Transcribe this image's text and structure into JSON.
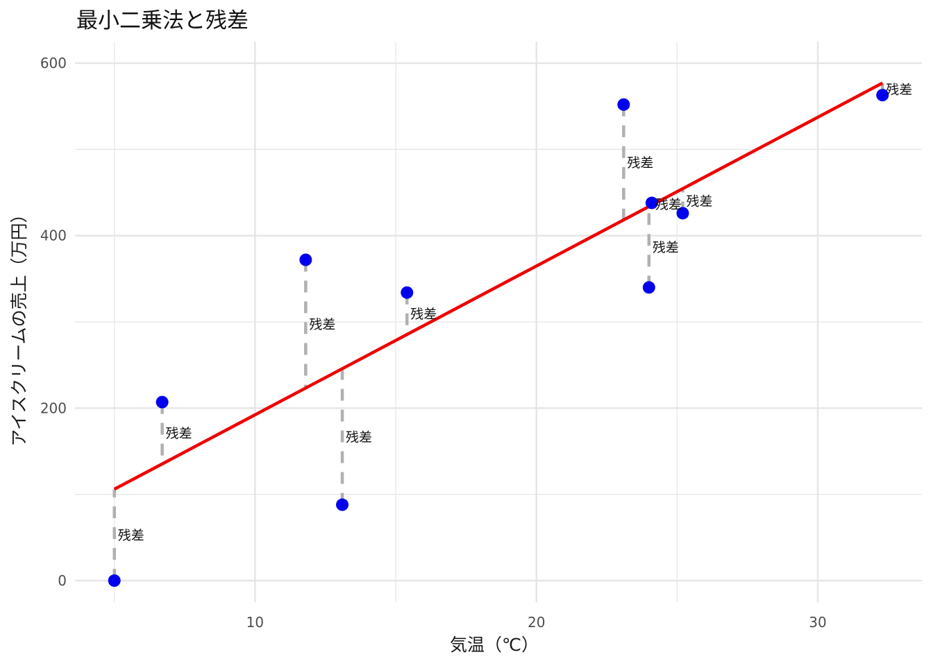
{
  "chart_data": {
    "type": "scatter",
    "title": "最小二乗法と残差",
    "xlabel": "気温（℃）",
    "ylabel": "アイスクリームの売上（万円）",
    "xlim": [
      3.6,
      33.7
    ],
    "ylim": [
      -25,
      625
    ],
    "x_ticks": [
      10,
      20,
      30
    ],
    "y_ticks": [
      0,
      200,
      400,
      600
    ],
    "x_minor_ticks": [
      5,
      15,
      25
    ],
    "y_minor_ticks": [
      100,
      300,
      500
    ],
    "grid": true,
    "points": [
      {
        "x": 5.0,
        "y": 0
      },
      {
        "x": 6.7,
        "y": 207
      },
      {
        "x": 11.8,
        "y": 372
      },
      {
        "x": 13.1,
        "y": 88
      },
      {
        "x": 15.4,
        "y": 334
      },
      {
        "x": 23.1,
        "y": 552
      },
      {
        "x": 24.0,
        "y": 340
      },
      {
        "x": 24.1,
        "y": 438
      },
      {
        "x": 25.2,
        "y": 426
      },
      {
        "x": 32.3,
        "y": 563
      }
    ],
    "fit_line": {
      "x": [
        5.0,
        32.3
      ],
      "y": [
        106,
        577
      ]
    },
    "residual_label": "残差",
    "colors": {
      "points": "#0000ee",
      "fit_line": "#ee0000",
      "residuals": "#b0b0b0",
      "grid": "#e5e5e5"
    }
  }
}
